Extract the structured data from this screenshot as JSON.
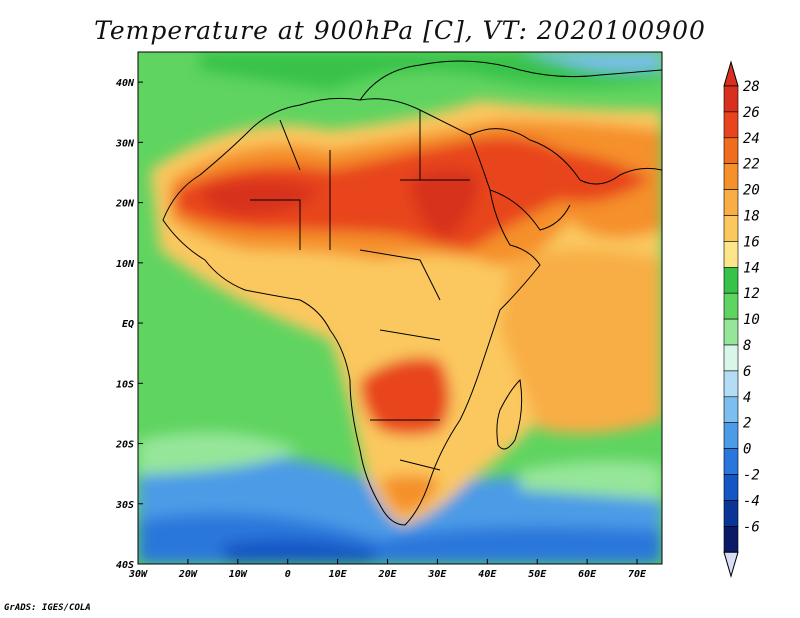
{
  "title": "Temperature at 900hPa [C], VT: 2020100900",
  "credit": "GrADS: IGES/COLA",
  "map": {
    "lat_labels": [
      "40N",
      "30N",
      "20N",
      "10N",
      "EQ",
      "10S",
      "20S",
      "30S",
      "40S"
    ],
    "lon_labels": [
      "30W",
      "20W",
      "10W",
      "0",
      "10E",
      "20E",
      "30E",
      "40E",
      "50E",
      "60E",
      "70E"
    ],
    "lon_range": [
      -30,
      75
    ],
    "lat_range": [
      -40,
      45
    ]
  },
  "colorbar": {
    "levels": [
      "28",
      "26",
      "24",
      "22",
      "20",
      "18",
      "16",
      "14",
      "12",
      "10",
      "8",
      "6",
      "4",
      "2",
      "0",
      "-2",
      "-4",
      "-6"
    ],
    "colors": [
      "#d7301f",
      "#e8451e",
      "#f06d1e",
      "#f5902b",
      "#f8ad45",
      "#fbc85f",
      "#fde68a",
      "#37c24a",
      "#5fd460",
      "#96e69a",
      "#d9f7e8",
      "#b5dcf5",
      "#7cbef0",
      "#4c9be6",
      "#2977dc",
      "#1457c4",
      "#0a3596",
      "#0a1a64"
    ],
    "top_triangle": "#d7301f",
    "bottom_triangle": "#d8dcf4"
  }
}
